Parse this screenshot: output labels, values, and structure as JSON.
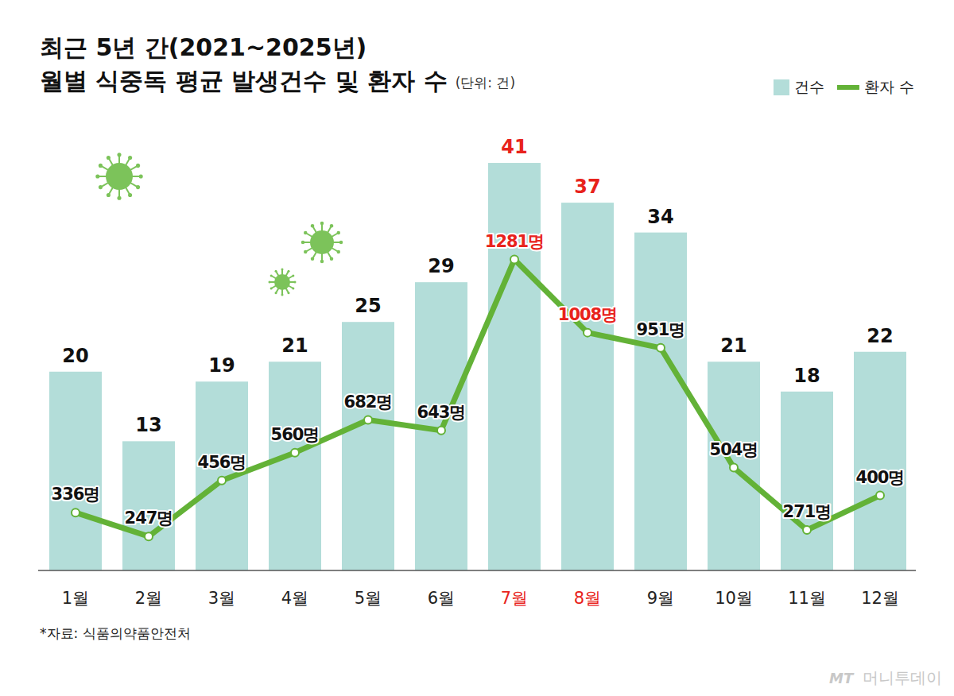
{
  "chart_data": {
    "type": "bar",
    "title": "최근 5년 간(2021~2025년)",
    "subtitle": "월별 식중독 평균 발생건수 및 환자 수",
    "ylabel": "(단위: 건)",
    "annotations": [
      "*자료: 식품의약품안전처",
      "MT",
      "머니투데이"
    ],
    "categories": [
      "1월",
      "2월",
      "3월",
      "4월",
      "5월",
      "6월",
      "7월",
      "8월",
      "9월",
      "10월",
      "11월",
      "12월"
    ],
    "series": [
      {
        "name": "건수",
        "type": "bar",
        "color": "#b3ddd9",
        "values": [
          20,
          13,
          19,
          21,
          25,
          29,
          41,
          37,
          34,
          21,
          18,
          22
        ]
      },
      {
        "name": "환자 수",
        "type": "line",
        "axis": "y2",
        "color": "#63b237",
        "marker": "circle",
        "values": [
          336,
          247,
          456,
          560,
          682,
          643,
          1281,
          1008,
          951,
          504,
          271,
          400
        ],
        "value_labels": [
          "336명",
          "247명",
          "456명",
          "560명",
          "682명",
          "643명",
          "1281명",
          "1008명",
          "951명",
          "504명",
          "271명",
          "400명"
        ]
      }
    ],
    "ylim": [
      0,
      45
    ],
    "y2lim": [
      120,
      1790
    ],
    "tick_labels": "x",
    "data_labels": true,
    "legend": "top-right"
  }
}
